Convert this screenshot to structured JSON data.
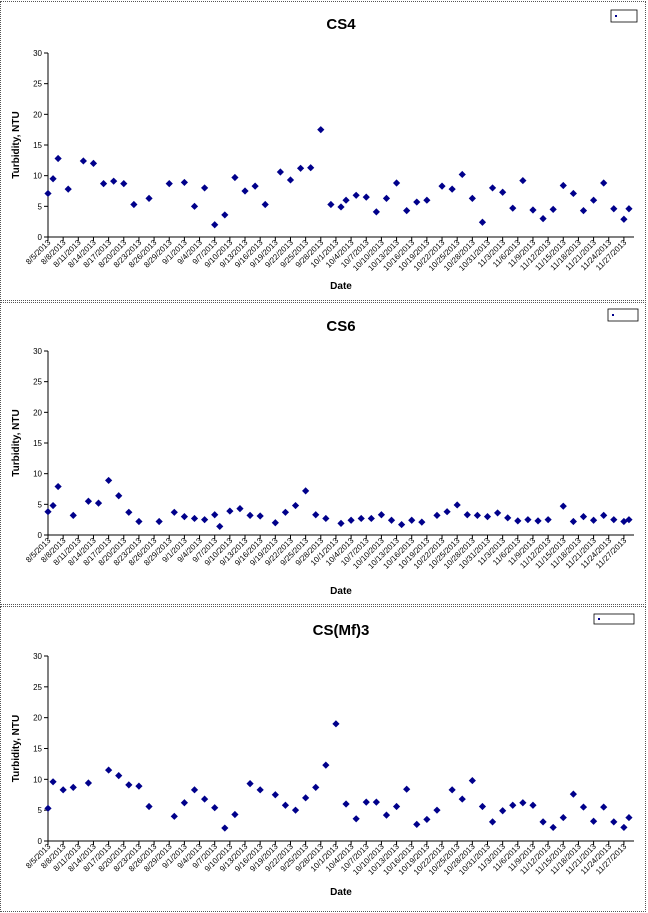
{
  "chart_data": [
    {
      "type": "scatter",
      "title": "CS4",
      "xlabel": "Date",
      "ylabel": "Turbidity, NTU",
      "ylim": [
        0,
        30
      ],
      "yticks": [
        0,
        5,
        10,
        15,
        20,
        25,
        30
      ],
      "xlim": [
        "8/5/2013",
        "11/29/2013"
      ],
      "xticks": [
        "8/5/2013",
        "8/8/2013",
        "8/11/2013",
        "8/14/2013",
        "8/17/2013",
        "8/20/2013",
        "8/23/2013",
        "8/26/2013",
        "8/29/2013",
        "9/1/2013",
        "9/4/2013",
        "9/7/2013",
        "9/10/2013",
        "9/13/2013",
        "9/16/2013",
        "9/19/2013",
        "9/22/2013",
        "9/25/2013",
        "9/28/2013",
        "10/1/2013",
        "10/4/2013",
        "10/7/2013",
        "10/10/2013",
        "10/13/2013",
        "10/16/2013",
        "10/19/2013",
        "10/22/2013",
        "10/25/2013",
        "10/28/2013",
        "10/31/2013",
        "11/3/2013",
        "11/6/2013",
        "11/9/2013",
        "11/12/2013",
        "11/15/2013",
        "11/18/2013",
        "11/21/2013",
        "11/24/2013",
        "11/27/2013"
      ],
      "grid": false,
      "legend_position": "top-right",
      "legend_label": "",
      "marker_color": "#00008B",
      "series": [
        {
          "x": [
            "8/5/2013",
            "8/6/2013",
            "8/7/2013",
            "8/9/2013",
            "8/12/2013",
            "8/14/2013",
            "8/16/2013",
            "8/18/2013",
            "8/20/2013",
            "8/22/2013",
            "8/25/2013",
            "8/29/2013",
            "9/1/2013",
            "9/3/2013",
            "9/5/2013",
            "9/7/2013",
            "9/9/2013",
            "9/11/2013",
            "9/13/2013",
            "9/15/2013",
            "9/17/2013",
            "9/20/2013",
            "9/22/2013",
            "9/24/2013",
            "9/26/2013",
            "9/28/2013",
            "9/30/2013",
            "10/2/2013",
            "10/3/2013",
            "10/5/2013",
            "10/7/2013",
            "10/9/2013",
            "10/11/2013",
            "10/13/2013",
            "10/15/2013",
            "10/17/2013",
            "10/19/2013",
            "10/22/2013",
            "10/24/2013",
            "10/26/2013",
            "10/28/2013",
            "10/30/2013",
            "11/1/2013",
            "11/3/2013",
            "11/5/2013",
            "11/7/2013",
            "11/9/2013",
            "11/11/2013",
            "11/13/2013",
            "11/15/2013",
            "11/17/2013",
            "11/19/2013",
            "11/21/2013",
            "11/23/2013",
            "11/25/2013",
            "11/27/2013",
            "11/28/2013"
          ],
          "y": [
            7.1,
            9.5,
            12.8,
            7.8,
            12.4,
            12.0,
            8.7,
            9.1,
            8.7,
            5.3,
            6.3,
            8.7,
            8.9,
            5.0,
            8.0,
            2.0,
            3.6,
            9.7,
            7.5,
            8.3,
            5.3,
            10.6,
            9.3,
            11.2,
            11.3,
            17.5,
            5.3,
            4.9,
            6.0,
            6.8,
            6.5,
            4.1,
            6.3,
            8.8,
            4.3,
            5.7,
            6.0,
            8.3,
            7.8,
            10.2,
            6.3,
            2.4,
            8.0,
            7.3,
            4.7,
            9.2,
            4.4,
            3.0,
            4.5,
            8.4,
            7.1,
            4.3,
            6.0,
            8.8,
            4.6,
            2.9,
            4.6
          ]
        }
      ]
    },
    {
      "type": "scatter",
      "title": "CS6",
      "xlabel": "Date",
      "ylabel": "Turbidity, NTU",
      "ylim": [
        0,
        30
      ],
      "yticks": [
        0,
        5,
        10,
        15,
        20,
        25,
        30
      ],
      "xlim": [
        "8/5/2013",
        "11/29/2013"
      ],
      "xticks": [
        "8/5/2013",
        "8/8/2013",
        "8/11/2013",
        "8/14/2013",
        "8/17/2013",
        "8/20/2013",
        "8/23/2013",
        "8/26/2013",
        "8/29/2013",
        "9/1/2013",
        "9/4/2013",
        "9/7/2013",
        "9/10/2013",
        "9/13/2013",
        "9/16/2013",
        "9/19/2013",
        "9/22/2013",
        "9/25/2013",
        "9/28/2013",
        "10/1/2013",
        "10/4/2013",
        "10/7/2013",
        "10/10/2013",
        "10/13/2013",
        "10/16/2013",
        "10/19/2013",
        "10/22/2013",
        "10/25/2013",
        "10/28/2013",
        "10/31/2013",
        "11/3/2013",
        "11/6/2013",
        "11/9/2013",
        "11/12/2013",
        "11/15/2013",
        "11/18/2013",
        "11/21/2013",
        "11/24/2013",
        "11/27/2013"
      ],
      "grid": false,
      "legend_position": "top-right",
      "legend_label": "",
      "marker_color": "#00008B",
      "series": [
        {
          "x": [
            "8/5/2013",
            "8/6/2013",
            "8/7/2013",
            "8/10/2013",
            "8/13/2013",
            "8/15/2013",
            "8/17/2013",
            "8/19/2013",
            "8/21/2013",
            "8/23/2013",
            "8/27/2013",
            "8/30/2013",
            "9/1/2013",
            "9/3/2013",
            "9/5/2013",
            "9/7/2013",
            "9/8/2013",
            "9/10/2013",
            "9/12/2013",
            "9/14/2013",
            "9/16/2013",
            "9/19/2013",
            "9/21/2013",
            "9/23/2013",
            "9/25/2013",
            "9/27/2013",
            "9/29/2013",
            "10/2/2013",
            "10/4/2013",
            "10/6/2013",
            "10/8/2013",
            "10/10/2013",
            "10/12/2013",
            "10/14/2013",
            "10/16/2013",
            "10/18/2013",
            "10/21/2013",
            "10/23/2013",
            "10/25/2013",
            "10/27/2013",
            "10/29/2013",
            "10/31/2013",
            "11/2/2013",
            "11/4/2013",
            "11/6/2013",
            "11/8/2013",
            "11/10/2013",
            "11/12/2013",
            "11/15/2013",
            "11/17/2013",
            "11/19/2013",
            "11/21/2013",
            "11/23/2013",
            "11/25/2013",
            "11/27/2013",
            "11/28/2013"
          ],
          "y": [
            3.8,
            4.8,
            7.9,
            3.2,
            5.5,
            5.2,
            8.9,
            6.4,
            3.7,
            2.2,
            2.2,
            3.7,
            3.0,
            2.7,
            2.5,
            3.3,
            1.4,
            3.9,
            4.3,
            3.2,
            3.1,
            2.0,
            3.7,
            4.8,
            7.2,
            3.3,
            2.7,
            1.9,
            2.4,
            2.7,
            2.7,
            3.3,
            2.4,
            1.7,
            2.4,
            2.1,
            3.2,
            3.8,
            4.9,
            3.3,
            3.2,
            3.0,
            3.6,
            2.8,
            2.3,
            2.5,
            2.3,
            2.5,
            4.7,
            2.2,
            3.0,
            2.4,
            3.2,
            2.5,
            2.2,
            2.5
          ]
        }
      ]
    },
    {
      "type": "scatter",
      "title": "CS(Mf)3",
      "xlabel": "Date",
      "ylabel": "Turbidity, NTU",
      "ylim": [
        0,
        30
      ],
      "yticks": [
        0,
        5,
        10,
        15,
        20,
        25,
        30
      ],
      "xlim": [
        "8/5/2013",
        "11/29/2013"
      ],
      "xticks": [
        "8/5/2013",
        "8/8/2013",
        "8/11/2013",
        "8/14/2013",
        "8/17/2013",
        "8/20/2013",
        "8/23/2013",
        "8/26/2013",
        "8/29/2013",
        "9/1/2013",
        "9/4/2013",
        "9/7/2013",
        "9/10/2013",
        "9/13/2013",
        "9/16/2013",
        "9/19/2013",
        "9/22/2013",
        "9/25/2013",
        "9/28/2013",
        "10/1/2013",
        "10/4/2013",
        "10/7/2013",
        "10/10/2013",
        "10/13/2013",
        "10/16/2013",
        "10/19/2013",
        "10/22/2013",
        "10/25/2013",
        "10/28/2013",
        "10/31/2013",
        "11/3/2013",
        "11/6/2013",
        "11/9/2013",
        "11/12/2013",
        "11/15/2013",
        "11/18/2013",
        "11/21/2013",
        "11/24/2013",
        "11/27/2013"
      ],
      "grid": false,
      "legend_position": "top-right",
      "legend_label": "",
      "marker_color": "#00008B",
      "series": [
        {
          "x": [
            "8/5/2013",
            "8/6/2013",
            "8/8/2013",
            "8/10/2013",
            "8/13/2013",
            "8/17/2013",
            "8/19/2013",
            "8/21/2013",
            "8/23/2013",
            "8/25/2013",
            "8/30/2013",
            "9/1/2013",
            "9/3/2013",
            "9/5/2013",
            "9/7/2013",
            "9/9/2013",
            "9/11/2013",
            "9/14/2013",
            "9/16/2013",
            "9/19/2013",
            "9/21/2013",
            "9/23/2013",
            "9/25/2013",
            "9/27/2013",
            "9/29/2013",
            "10/1/2013",
            "10/3/2013",
            "10/5/2013",
            "10/7/2013",
            "10/9/2013",
            "10/11/2013",
            "10/13/2013",
            "10/15/2013",
            "10/17/2013",
            "10/19/2013",
            "10/21/2013",
            "10/24/2013",
            "10/26/2013",
            "10/28/2013",
            "10/30/2013",
            "11/1/2013",
            "11/3/2013",
            "11/5/2013",
            "11/7/2013",
            "11/9/2013",
            "11/11/2013",
            "11/13/2013",
            "11/15/2013",
            "11/17/2013",
            "11/19/2013",
            "11/21/2013",
            "11/23/2013",
            "11/25/2013",
            "11/27/2013",
            "11/28/2013"
          ],
          "y": [
            5.3,
            9.6,
            8.3,
            8.7,
            9.4,
            11.5,
            10.6,
            9.1,
            8.9,
            5.6,
            4.0,
            6.2,
            8.3,
            6.8,
            5.4,
            2.1,
            4.3,
            9.3,
            8.3,
            7.5,
            5.8,
            5.0,
            7.0,
            8.7,
            12.3,
            19.0,
            6.0,
            3.6,
            6.3,
            6.3,
            4.2,
            5.6,
            8.4,
            2.7,
            3.5,
            5.0,
            8.3,
            6.8,
            9.8,
            5.6,
            3.1,
            4.9,
            5.8,
            6.2,
            5.8,
            3.1,
            2.2,
            3.8,
            7.6,
            5.5,
            3.2,
            5.5,
            3.1,
            2.2,
            3.8
          ]
        }
      ]
    }
  ]
}
